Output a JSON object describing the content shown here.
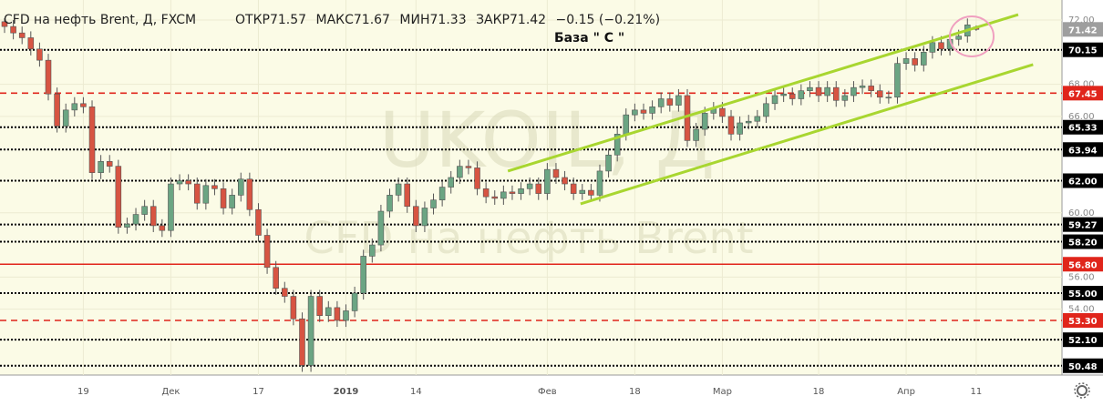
{
  "chart_data": {
    "type": "candlestick",
    "title": "CFD на нефть Brent, Д, FXCM",
    "watermark": [
      "UKOIL, Д",
      "CFD на нефть Brent"
    ],
    "legend_labels": [
      "ОТКР",
      "МАКС",
      "МИН",
      "ЗАКР"
    ],
    "change": "−0.15 (−0.21%)",
    "annotation": "База \" С \"",
    "up_color": "#6ba583",
    "down_color": "#d75442",
    "open": [
      71.9,
      71.6,
      71.2,
      70.9,
      70.2,
      69.5,
      67.4,
      65.4,
      66.4,
      66.8,
      66.6,
      62.5,
      63.2,
      62.9,
      59.1,
      59.3,
      59.9,
      60.4,
      59.2,
      58.9,
      61.8,
      62.0,
      61.8,
      60.6,
      61.7,
      61.5,
      60.3,
      61.1,
      62.1,
      60.2,
      58.6,
      56.6,
      55.3,
      54.8,
      53.4,
      50.5,
      54.8,
      53.6,
      54.1,
      53.3,
      53.9,
      55.0,
      57.3,
      58.0,
      60.1,
      61.1,
      61.8,
      60.4,
      59.2,
      60.3,
      60.8,
      61.6,
      62.2,
      62.9,
      62.8,
      61.5,
      61.0,
      60.9,
      61.3,
      61.2,
      61.5,
      61.8,
      61.2,
      62.7,
      62.2,
      61.8,
      61.2,
      61.4,
      61.1,
      62.6,
      63.6,
      64.9,
      66.1,
      66.4,
      66.2,
      66.6,
      67.1,
      66.7,
      67.3,
      64.5,
      65.2,
      66.2,
      66.5,
      66.0,
      64.9,
      65.6,
      65.7,
      66.0,
      66.8,
      67.3,
      67.4,
      67.1,
      67.6,
      67.8,
      67.3,
      67.8,
      67.0,
      67.3,
      67.8,
      67.9,
      67.6,
      67.2,
      67.2,
      69.3,
      69.6,
      69.2,
      70.0,
      70.6,
      70.2,
      70.8,
      71.0,
      71.57
    ],
    "high": [
      72.3,
      72.0,
      71.6,
      71.3,
      70.6,
      69.9,
      67.8,
      66.8,
      67.2,
      67.2,
      67.0,
      63.6,
      63.6,
      63.3,
      59.7,
      60.3,
      60.8,
      60.8,
      59.6,
      62.2,
      62.4,
      62.4,
      62.2,
      62.1,
      62.1,
      61.9,
      61.5,
      62.5,
      62.5,
      60.6,
      59.0,
      57.0,
      55.7,
      55.2,
      53.8,
      55.2,
      55.2,
      54.5,
      54.5,
      54.3,
      55.4,
      57.7,
      58.4,
      60.5,
      61.5,
      62.2,
      62.2,
      60.8,
      60.7,
      61.2,
      62.0,
      62.6,
      63.3,
      63.3,
      63.2,
      61.9,
      61.4,
      61.7,
      61.7,
      61.9,
      62.2,
      62.2,
      63.1,
      63.1,
      62.6,
      62.2,
      61.8,
      61.8,
      63.0,
      64.0,
      65.3,
      66.5,
      66.8,
      66.8,
      67.0,
      67.5,
      67.5,
      67.7,
      67.7,
      65.6,
      66.6,
      66.9,
      66.9,
      66.4,
      66.0,
      66.1,
      66.4,
      67.2,
      67.7,
      67.8,
      67.8,
      68.0,
      68.2,
      68.2,
      68.2,
      68.2,
      67.7,
      68.2,
      68.3,
      68.3,
      68.0,
      67.6,
      69.7,
      70.0,
      70.0,
      70.4,
      71.0,
      71.0,
      71.2,
      71.4,
      72.1,
      71.67
    ],
    "low": [
      71.2,
      70.8,
      70.5,
      69.8,
      69.1,
      67.0,
      65.0,
      65.0,
      66.0,
      66.2,
      62.1,
      62.1,
      62.5,
      58.7,
      58.7,
      58.9,
      59.5,
      58.8,
      58.5,
      58.5,
      61.4,
      61.4,
      60.2,
      60.2,
      61.1,
      59.9,
      59.9,
      60.7,
      59.8,
      58.2,
      56.2,
      54.9,
      54.4,
      53.0,
      50.1,
      50.1,
      53.2,
      53.2,
      52.9,
      52.9,
      53.5,
      54.6,
      56.9,
      57.6,
      59.7,
      60.7,
      60.0,
      58.8,
      58.8,
      59.9,
      60.4,
      61.2,
      61.8,
      62.4,
      61.1,
      60.6,
      60.5,
      60.5,
      60.8,
      60.8,
      61.1,
      60.8,
      60.8,
      61.8,
      61.4,
      60.8,
      60.8,
      60.7,
      60.7,
      62.2,
      63.2,
      64.5,
      65.7,
      65.8,
      65.8,
      66.2,
      66.3,
      66.3,
      64.1,
      64.1,
      64.8,
      65.8,
      65.6,
      64.5,
      64.5,
      65.2,
      65.3,
      65.6,
      66.4,
      66.9,
      66.7,
      66.7,
      67.2,
      66.9,
      66.9,
      66.6,
      66.6,
      66.9,
      67.4,
      67.2,
      66.8,
      66.8,
      66.8,
      68.9,
      68.8,
      68.8,
      69.6,
      69.8,
      69.8,
      70.4,
      70.6,
      71.33
    ],
    "close": [
      71.6,
      71.2,
      70.9,
      70.2,
      69.5,
      67.4,
      65.4,
      66.4,
      66.8,
      66.6,
      62.5,
      63.2,
      62.9,
      59.1,
      59.3,
      59.9,
      60.4,
      59.2,
      58.9,
      61.8,
      62.0,
      61.8,
      60.6,
      61.7,
      61.5,
      60.3,
      61.1,
      62.1,
      60.2,
      58.6,
      56.6,
      55.3,
      54.8,
      53.4,
      50.5,
      54.8,
      53.6,
      54.1,
      53.3,
      53.9,
      55.0,
      57.3,
      58.0,
      60.1,
      61.1,
      61.8,
      60.4,
      59.2,
      60.3,
      60.8,
      61.6,
      62.2,
      62.9,
      62.8,
      61.5,
      61.0,
      60.9,
      61.3,
      61.2,
      61.5,
      61.8,
      61.2,
      62.7,
      62.2,
      61.8,
      61.2,
      61.4,
      61.1,
      62.6,
      63.6,
      64.9,
      66.1,
      66.4,
      66.2,
      66.6,
      67.1,
      66.7,
      67.3,
      64.5,
      65.2,
      66.2,
      66.5,
      66.0,
      64.9,
      65.6,
      65.7,
      66.0,
      66.8,
      67.3,
      67.4,
      67.1,
      67.6,
      67.8,
      67.3,
      67.8,
      67.0,
      67.3,
      67.8,
      67.9,
      67.6,
      67.2,
      67.2,
      69.3,
      69.6,
      69.2,
      70.0,
      70.6,
      70.2,
      70.8,
      71.0,
      71.7,
      71.42
    ],
    "xlim": [
      -0.52,
      120.8
    ],
    "ylim": [
      49.9,
      73.25
    ],
    "xticks": [
      {
        "value": 9,
        "label": "19"
      },
      {
        "value": 19,
        "label": "Дек"
      },
      {
        "value": 29,
        "label": "17"
      },
      {
        "value": 39,
        "label": "2019",
        "bold": true
      },
      {
        "value": 47,
        "label": "14"
      },
      {
        "value": 62,
        "label": "Фев"
      },
      {
        "value": 72,
        "label": "18"
      },
      {
        "value": 82,
        "label": "Мар"
      },
      {
        "value": 93,
        "label": "18"
      },
      {
        "value": 103,
        "label": "Апр"
      },
      {
        "value": 111,
        "label": "11"
      }
    ],
    "yticks": [
      {
        "value": 72,
        "label": "72.00"
      },
      {
        "value": 68,
        "label": "68.00"
      },
      {
        "value": 66,
        "label": "66.00"
      },
      {
        "value": 60,
        "label": "60.00"
      },
      {
        "value": 56,
        "label": "56.00"
      },
      {
        "value": 54,
        "label": "54.00"
      }
    ],
    "levels": [
      {
        "value": 70.15,
        "label": "70.15",
        "color": "#000000",
        "style": "dotted"
      },
      {
        "value": 67.45,
        "label": "67.45",
        "color": "#e0251b",
        "style": "dashed"
      },
      {
        "value": 65.33,
        "label": "65.33",
        "color": "#000000",
        "style": "dotted"
      },
      {
        "value": 63.94,
        "label": "63.94",
        "color": "#000000",
        "style": "dotted"
      },
      {
        "value": 62,
        "label": "62.00",
        "color": "#000000",
        "style": "dotted"
      },
      {
        "value": 59.27,
        "label": "59.27",
        "color": "#000000",
        "style": "dotted"
      },
      {
        "value": 58.2,
        "label": "58.20",
        "color": "#000000",
        "style": "dotted"
      },
      {
        "value": 56.8,
        "label": "56.80",
        "color": "#e0251b",
        "style": "solid"
      },
      {
        "value": 55,
        "label": "55.00",
        "color": "#000000",
        "style": "dotted"
      },
      {
        "value": 53.3,
        "label": "53.30",
        "color": "#e0251b",
        "style": "dashed"
      },
      {
        "value": 52.1,
        "label": "52.10",
        "color": "#000000",
        "style": "dotted"
      },
      {
        "value": 50.48,
        "label": "50.48",
        "color": "#000000",
        "style": "dotted"
      }
    ],
    "trendlines": [
      {
        "x": [
          57.5,
          115.8
        ],
        "y": [
          62.6,
          72.34
        ],
        "color": "#a8d630"
      },
      {
        "x": [
          65.8,
          117.5
        ],
        "y": [
          60.56,
          69.23
        ],
        "color": "#a8d630"
      }
    ],
    "price_label_color": "#9e9e9e"
  }
}
